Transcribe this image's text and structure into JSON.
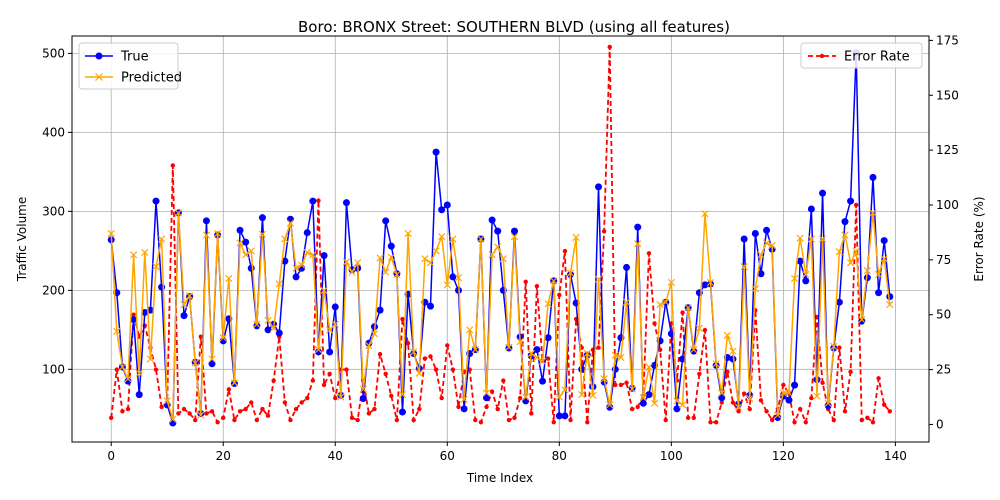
{
  "chart_data": {
    "type": "line",
    "title": "Boro: BRONX Street: SOUTHERN BLVD (using all features)",
    "xlabel": "Time Index",
    "ylabel": "Traffic Volume",
    "y2label": "Error Rate (%)",
    "xlim": [
      -7,
      146
    ],
    "ylim": [
      8,
      522
    ],
    "y2lim": [
      -8,
      177
    ],
    "xticks": [
      0,
      20,
      40,
      60,
      80,
      100,
      120,
      140
    ],
    "yticks": [
      100,
      200,
      300,
      400,
      500
    ],
    "y2ticks": [
      0,
      25,
      50,
      75,
      100,
      125,
      150,
      175
    ],
    "grid": true,
    "legend_left_position": "upper left",
    "legend_right_position": "upper right",
    "colors": {
      "true": "#0000ff",
      "predicted": "#ffa500",
      "error": "#ff0000"
    },
    "series": [
      {
        "name": "True",
        "axis": "left",
        "marker": "circle",
        "values": [
          264,
          197,
          103,
          85,
          163,
          68,
          172,
          175,
          313,
          204,
          55,
          32,
          298,
          168,
          192,
          109,
          44,
          288,
          107,
          270,
          136,
          164,
          82,
          276,
          261,
          228,
          155,
          292,
          150,
          157,
          146,
          237,
          290,
          217,
          228,
          273,
          313,
          122,
          244,
          122,
          179,
          67,
          311,
          226,
          228,
          63,
          133,
          154,
          175,
          288,
          256,
          221,
          46,
          195,
          120,
          101,
          185,
          180,
          375,
          302,
          308,
          217,
          200,
          50,
          120,
          125,
          265,
          64,
          289,
          275,
          200,
          127,
          275,
          141,
          60,
          117,
          125,
          85,
          140,
          212,
          41,
          41,
          220,
          184,
          100,
          118,
          78,
          331,
          84,
          52,
          100,
          140,
          229,
          76,
          280,
          57,
          68,
          105,
          136,
          185,
          145,
          50,
          113,
          178,
          123,
          197,
          207,
          208,
          105,
          64,
          115,
          113,
          56,
          265,
          67,
          272,
          221,
          276,
          252,
          39,
          66,
          61,
          80,
          237,
          212,
          303,
          87,
          323,
          54,
          127,
          185,
          287,
          313,
          501,
          161,
          216,
          343,
          197,
          263,
          192
        ]
      },
      {
        "name": "Predicted",
        "axis": "left",
        "marker": "x",
        "values": [
          272,
          148,
          103,
          88,
          245,
          95,
          248,
          113,
          230,
          265,
          60,
          37,
          298,
          182,
          193,
          108,
          42,
          270,
          113,
          272,
          140,
          215,
          83,
          260,
          245,
          250,
          157,
          271,
          162,
          152,
          208,
          265,
          285,
          228,
          232,
          248,
          245,
          125,
          200,
          150,
          157,
          65,
          236,
          223,
          235,
          75,
          130,
          145,
          241,
          223,
          242,
          220,
          68,
          272,
          122,
          95,
          240,
          235,
          250,
          268,
          207,
          265,
          216,
          62,
          150,
          125,
          265,
          70,
          245,
          255,
          240,
          128,
          268,
          135,
          65,
          120,
          115,
          110,
          183,
          212,
          65,
          74,
          222,
          267,
          68,
          120,
          67,
          214,
          88,
          55,
          118,
          115,
          185,
          75,
          259,
          64,
          103,
          57,
          182,
          185,
          210,
          60,
          55,
          178,
          125,
          152,
          297,
          210,
          107,
          70,
          143,
          123,
          52,
          230,
          63,
          202,
          245,
          260,
          257,
          42,
          70,
          70,
          215,
          266,
          220,
          265,
          66,
          265,
          57,
          129,
          249,
          270,
          235,
          249,
          163,
          225,
          298,
          220,
          240,
          182
        ]
      },
      {
        "name": "Error Rate",
        "axis": "right",
        "marker": "dot",
        "values": [
          3,
          25,
          6,
          7,
          50,
          40,
          45,
          35,
          25,
          8,
          10,
          118,
          5,
          7,
          5,
          2,
          40,
          5,
          6,
          1,
          3,
          16,
          2,
          6,
          7,
          10,
          2,
          7,
          4,
          20,
          40,
          10,
          2,
          7,
          10,
          12,
          20,
          102,
          18,
          23,
          12,
          25,
          25,
          3,
          2,
          20,
          5,
          7,
          32,
          23,
          13,
          2,
          48,
          37,
          2,
          7,
          30,
          31,
          25,
          12,
          36,
          25,
          8,
          24,
          25,
          2,
          1,
          8,
          15,
          7,
          20,
          2,
          3,
          12,
          65,
          5,
          63,
          29,
          30,
          1,
          59,
          79,
          2,
          48,
          35,
          1,
          34,
          35,
          88,
          172,
          18,
          18,
          19,
          7,
          8,
          13,
          78,
          46,
          34,
          2,
          46,
          20,
          51,
          3,
          3,
          23,
          43,
          1,
          1,
          10,
          24,
          10,
          6,
          14,
          7,
          52,
          11,
          6,
          2,
          7,
          18,
          14,
          1,
          7,
          1,
          12,
          49,
          19,
          7,
          2,
          35,
          6,
          24,
          100,
          2,
          3,
          1,
          21,
          9,
          6
        ]
      }
    ]
  }
}
